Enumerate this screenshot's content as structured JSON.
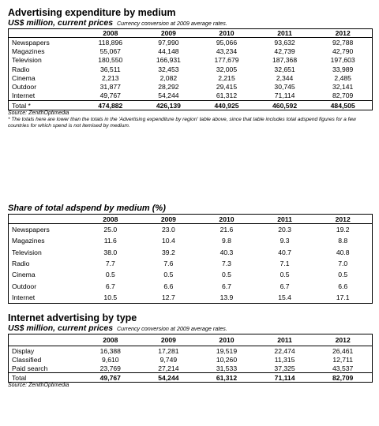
{
  "advertising": {
    "title": "Advertising expenditure by medium",
    "unit": "US$ million, current prices",
    "unit_note": "Currency conversion at 2009 average rates.",
    "years": [
      "2008",
      "2009",
      "2010",
      "2011",
      "2012"
    ],
    "rows": [
      {
        "label": "Newspapers",
        "values": [
          "118,896",
          "97,990",
          "95,066",
          "93,632",
          "92,788"
        ]
      },
      {
        "label": "Magazines",
        "values": [
          "55,067",
          "44,148",
          "43,234",
          "42,739",
          "42,790"
        ]
      },
      {
        "label": "Television",
        "values": [
          "180,550",
          "166,931",
          "177,679",
          "187,368",
          "197,603"
        ]
      },
      {
        "label": "Radio",
        "values": [
          "36,511",
          "32,453",
          "32,005",
          "32,651",
          "33,989"
        ]
      },
      {
        "label": "Cinema",
        "values": [
          "2,213",
          "2,082",
          "2,215",
          "2,344",
          "2,485"
        ]
      },
      {
        "label": "Outdoor",
        "values": [
          "31,877",
          "28,292",
          "29,415",
          "30,745",
          "32,141"
        ]
      },
      {
        "label": "Internet",
        "values": [
          "49,767",
          "54,244",
          "61,312",
          "71,114",
          "82,709"
        ]
      }
    ],
    "total": {
      "label": "Total *",
      "values": [
        "474,882",
        "426,139",
        "440,925",
        "460,592",
        "484,505"
      ]
    },
    "source": "Source: ZenithOptimedia",
    "footnote": "* The totals here are lower than the totals in the 'Advertising expenditure by region' table above, since that table includes total adspend figures for a few countries for which spend is not itemised by medium."
  },
  "share": {
    "title": "Share of total adspend by medium (%)",
    "years": [
      "2008",
      "2009",
      "2010",
      "2011",
      "2012"
    ],
    "rows": [
      {
        "label": "Newspapers",
        "values": [
          "25.0",
          "23.0",
          "21.6",
          "20.3",
          "19.2"
        ]
      },
      {
        "label": "Magazines",
        "values": [
          "11.6",
          "10.4",
          "9.8",
          "9.3",
          "8.8"
        ]
      },
      {
        "label": "Television",
        "values": [
          "38.0",
          "39.2",
          "40.3",
          "40.7",
          "40.8"
        ]
      },
      {
        "label": "Radio",
        "values": [
          "7.7",
          "7.6",
          "7.3",
          "7.1",
          "7.0"
        ]
      },
      {
        "label": "Cinema",
        "values": [
          "0.5",
          "0.5",
          "0.5",
          "0.5",
          "0.5"
        ]
      },
      {
        "label": "Outdoor",
        "values": [
          "6.7",
          "6.6",
          "6.7",
          "6.7",
          "6.6"
        ]
      },
      {
        "label": "Internet",
        "values": [
          "10.5",
          "12.7",
          "13.9",
          "15.4",
          "17.1"
        ]
      }
    ]
  },
  "internet": {
    "title": "Internet advertising by type",
    "unit": "US$ million, current prices",
    "unit_note": "Currency conversion at 2009 average rates.",
    "years": [
      "2008",
      "2009",
      "2010",
      "2011",
      "2012"
    ],
    "rows": [
      {
        "label": "Display",
        "values": [
          "16,388",
          "17,281",
          "19,519",
          "22,474",
          "26,461"
        ]
      },
      {
        "label": "Classified",
        "values": [
          "9,610",
          "9,749",
          "10,260",
          "11,315",
          "12,711"
        ]
      },
      {
        "label": "Paid search",
        "values": [
          "23,769",
          "27,214",
          "31,533",
          "37,325",
          "43,537"
        ]
      }
    ],
    "total": {
      "label": "Total",
      "values": [
        "49,767",
        "54,244",
        "61,312",
        "71,114",
        "82,709"
      ]
    },
    "source": "Source: ZenithOptimedia"
  }
}
